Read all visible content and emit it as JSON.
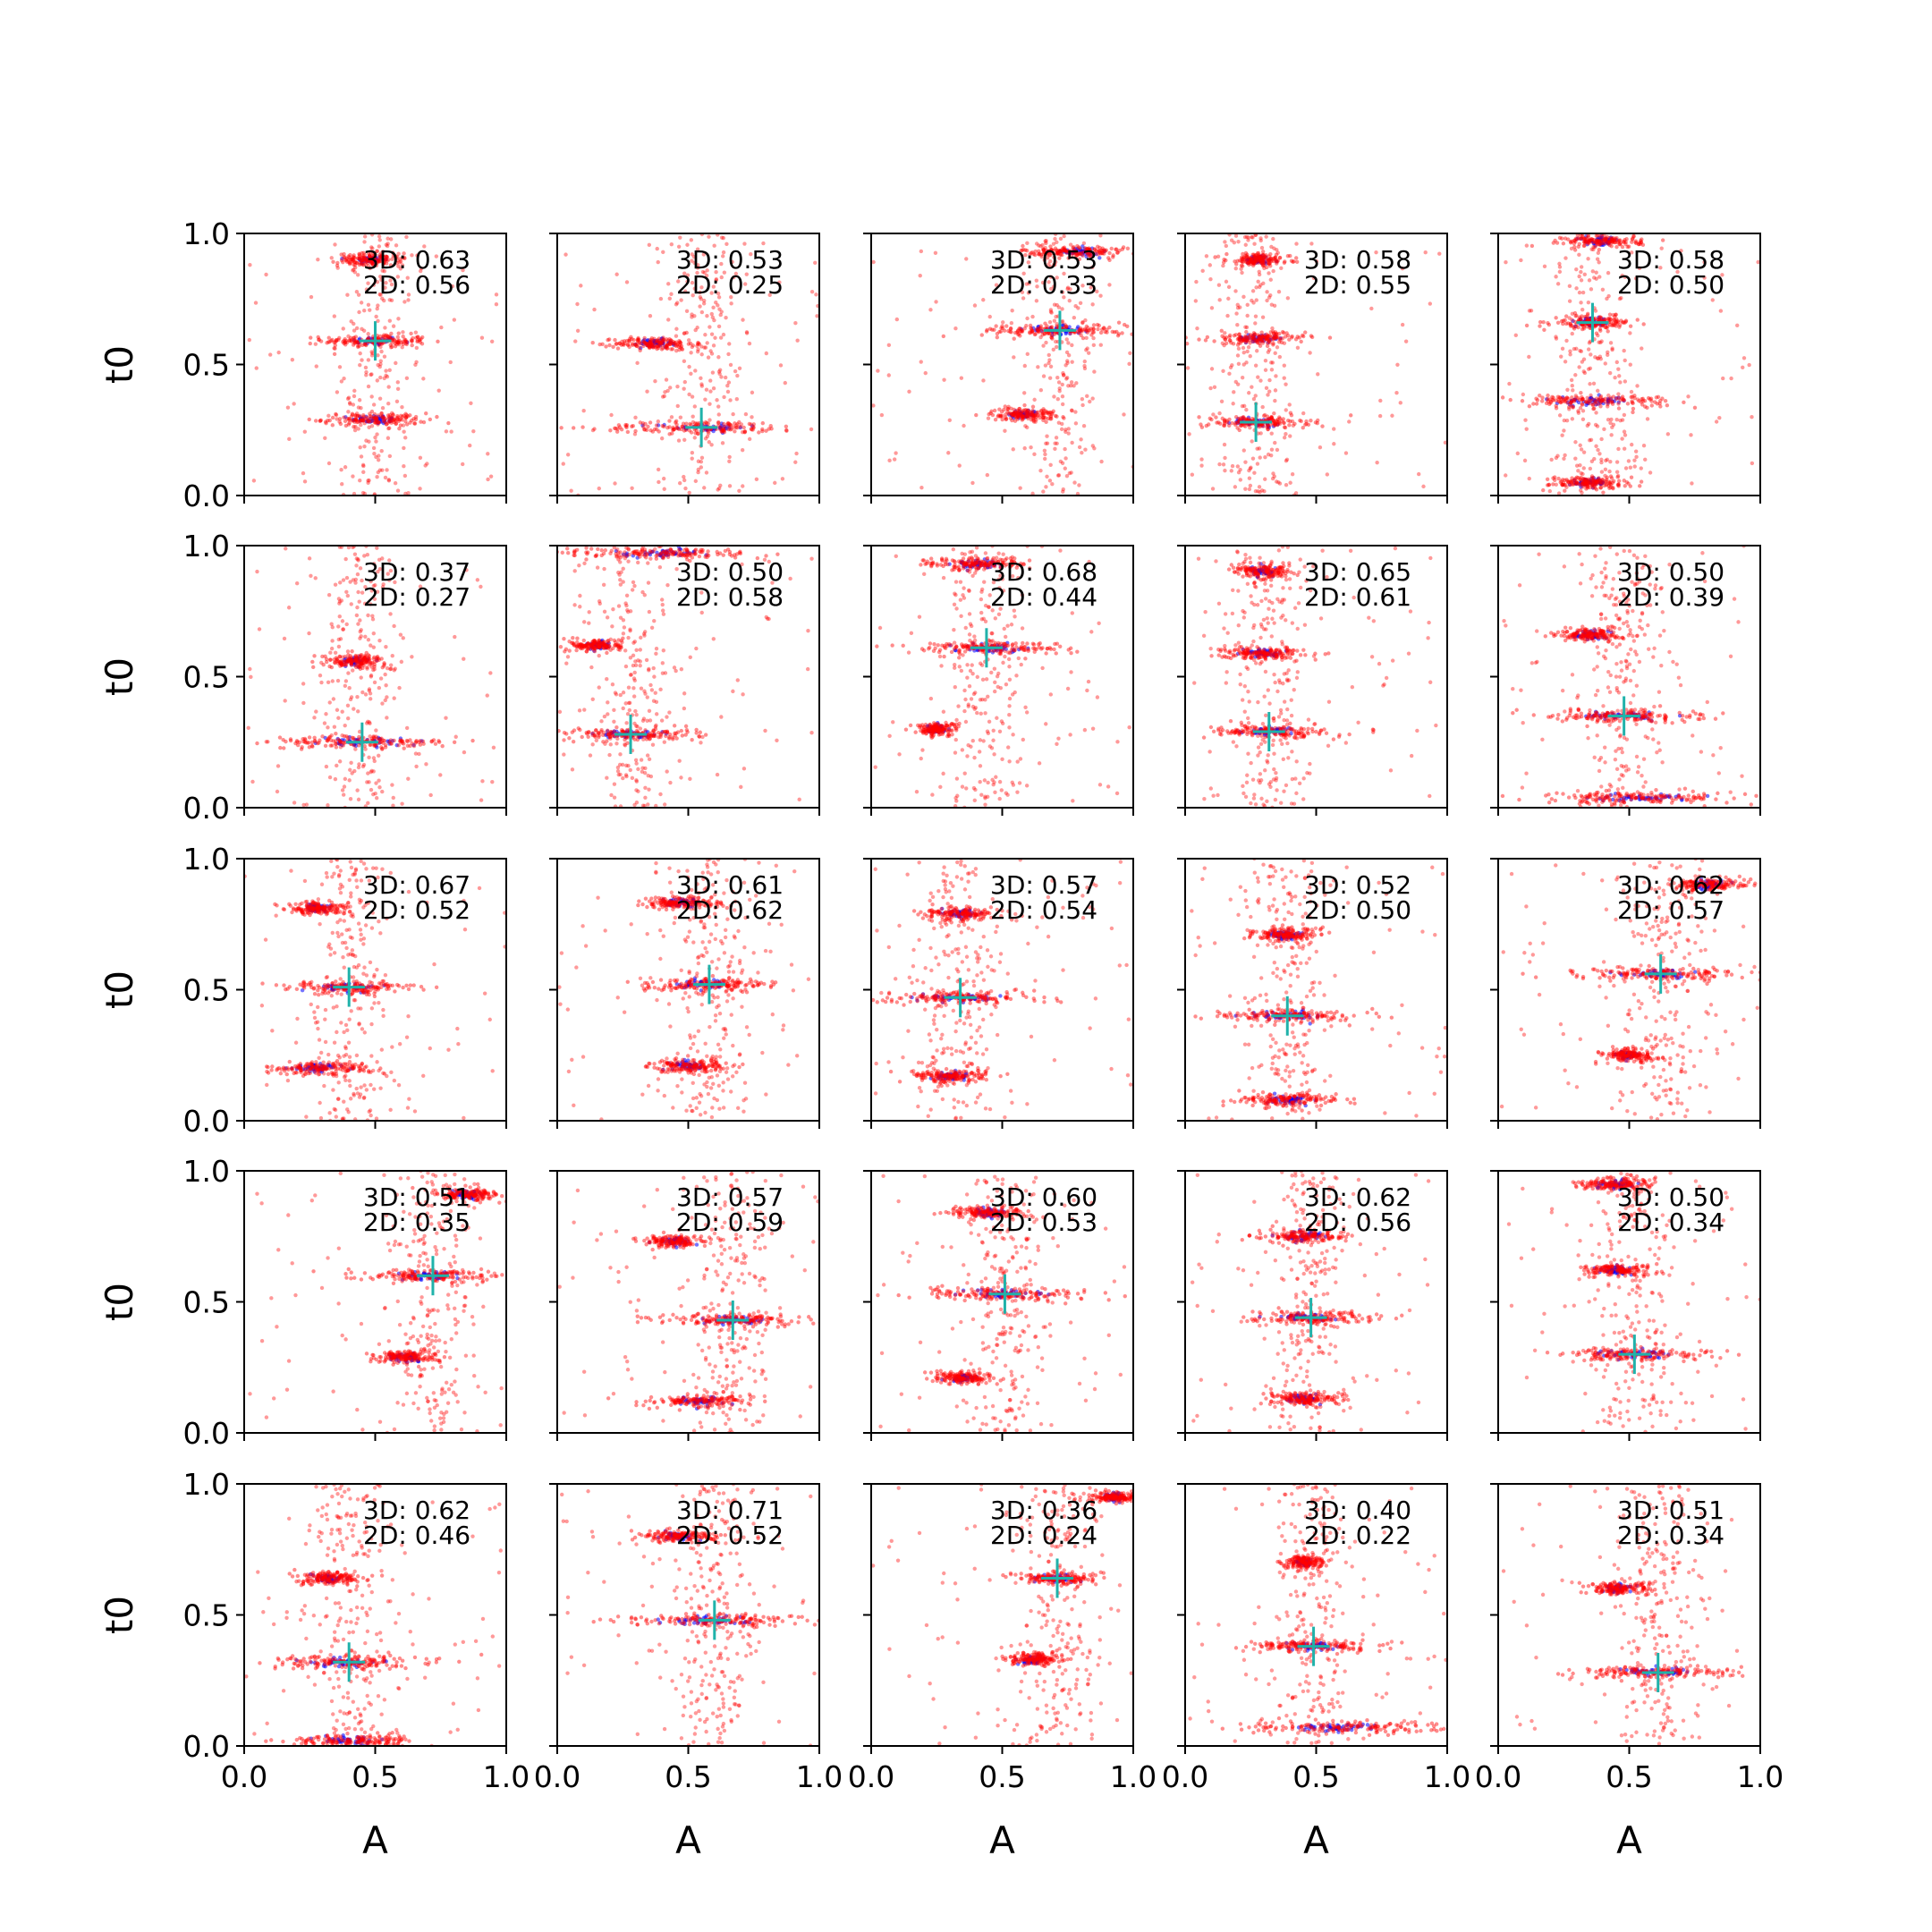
{
  "chart_data": {
    "type": "scatter",
    "grid": false,
    "layout": "5x5 small multiples",
    "xlabel": "A",
    "ylabel": "t0",
    "xlim": [
      0.0,
      1.0
    ],
    "ylim": [
      0.0,
      1.0
    ],
    "xticks": [
      "0.0",
      "0.5",
      "1.0"
    ],
    "yticks": [
      "0.0",
      "0.5",
      "1.0"
    ],
    "colors": {
      "series_3d": "#0000ff",
      "series_2d": "#ff0000",
      "marker": "#20b2aa"
    },
    "annotation_labels": [
      "3D:",
      "2D:"
    ],
    "panels": [
      {
        "score_3d": "0.63",
        "score_2d": "0.56",
        "marker": [
          0.5,
          0.59
        ],
        "clusters": [
          {
            "a": 0.5,
            "t": 0.59,
            "w": 0.2
          },
          {
            "a": 0.5,
            "t": 0.29,
            "w": 0.2
          },
          {
            "a": 0.48,
            "t": 0.9,
            "w": 0.12
          }
        ]
      },
      {
        "score_3d": "0.53",
        "score_2d": "0.25",
        "marker": [
          0.55,
          0.26
        ],
        "clusters": [
          {
            "a": 0.37,
            "t": 0.58,
            "w": 0.15
          },
          {
            "a": 0.55,
            "t": 0.26,
            "w": 0.4
          }
        ]
      },
      {
        "score_3d": "0.53",
        "score_2d": "0.33",
        "marker": [
          0.72,
          0.63
        ],
        "clusters": [
          {
            "a": 0.72,
            "t": 0.63,
            "w": 0.3
          },
          {
            "a": 0.58,
            "t": 0.31,
            "w": 0.12
          },
          {
            "a": 0.78,
            "t": 0.93,
            "w": 0.2
          }
        ]
      },
      {
        "score_3d": "0.58",
        "score_2d": "0.55",
        "marker": [
          0.27,
          0.28
        ],
        "clusters": [
          {
            "a": 0.27,
            "t": 0.28,
            "w": 0.2
          },
          {
            "a": 0.28,
            "t": 0.6,
            "w": 0.18
          },
          {
            "a": 0.28,
            "t": 0.9,
            "w": 0.12
          }
        ]
      },
      {
        "score_3d": "0.58",
        "score_2d": "0.50",
        "marker": [
          0.36,
          0.66
        ],
        "clusters": [
          {
            "a": 0.36,
            "t": 0.66,
            "w": 0.15
          },
          {
            "a": 0.36,
            "t": 0.36,
            "w": 0.3
          },
          {
            "a": 0.35,
            "t": 0.05,
            "w": 0.15
          },
          {
            "a": 0.4,
            "t": 0.97,
            "w": 0.15
          }
        ]
      },
      {
        "score_3d": "0.37",
        "score_2d": "0.27",
        "marker": [
          0.45,
          0.25
        ],
        "clusters": [
          {
            "a": 0.45,
            "t": 0.25,
            "w": 0.35
          },
          {
            "a": 0.42,
            "t": 0.56,
            "w": 0.12
          }
        ]
      },
      {
        "score_3d": "0.50",
        "score_2d": "0.58",
        "marker": [
          0.28,
          0.28
        ],
        "clusters": [
          {
            "a": 0.28,
            "t": 0.28,
            "w": 0.25
          },
          {
            "a": 0.15,
            "t": 0.62,
            "w": 0.1
          },
          {
            "a": 0.4,
            "t": 0.97,
            "w": 0.4
          }
        ]
      },
      {
        "score_3d": "0.68",
        "score_2d": "0.44",
        "marker": [
          0.44,
          0.61
        ],
        "clusters": [
          {
            "a": 0.44,
            "t": 0.61,
            "w": 0.3
          },
          {
            "a": 0.25,
            "t": 0.3,
            "w": 0.08
          },
          {
            "a": 0.4,
            "t": 0.93,
            "w": 0.2
          }
        ]
      },
      {
        "score_3d": "0.65",
        "score_2d": "0.61",
        "marker": [
          0.32,
          0.29
        ],
        "clusters": [
          {
            "a": 0.32,
            "t": 0.29,
            "w": 0.25
          },
          {
            "a": 0.3,
            "t": 0.59,
            "w": 0.15
          },
          {
            "a": 0.3,
            "t": 0.9,
            "w": 0.12
          }
        ]
      },
      {
        "score_3d": "0.50",
        "score_2d": "0.39",
        "marker": [
          0.48,
          0.35
        ],
        "clusters": [
          {
            "a": 0.48,
            "t": 0.35,
            "w": 0.3
          },
          {
            "a": 0.35,
            "t": 0.66,
            "w": 0.12
          },
          {
            "a": 0.55,
            "t": 0.04,
            "w": 0.4
          }
        ]
      },
      {
        "score_3d": "0.67",
        "score_2d": "0.52",
        "marker": [
          0.4,
          0.51
        ],
        "clusters": [
          {
            "a": 0.4,
            "t": 0.51,
            "w": 0.25
          },
          {
            "a": 0.28,
            "t": 0.2,
            "w": 0.2
          },
          {
            "a": 0.28,
            "t": 0.81,
            "w": 0.12
          }
        ]
      },
      {
        "score_3d": "0.61",
        "score_2d": "0.62",
        "marker": [
          0.58,
          0.52
        ],
        "clusters": [
          {
            "a": 0.58,
            "t": 0.52,
            "w": 0.25
          },
          {
            "a": 0.5,
            "t": 0.21,
            "w": 0.15
          },
          {
            "a": 0.48,
            "t": 0.83,
            "w": 0.15
          }
        ]
      },
      {
        "score_3d": "0.57",
        "score_2d": "0.54",
        "marker": [
          0.34,
          0.47
        ],
        "clusters": [
          {
            "a": 0.34,
            "t": 0.47,
            "w": 0.3
          },
          {
            "a": 0.3,
            "t": 0.17,
            "w": 0.15
          },
          {
            "a": 0.35,
            "t": 0.79,
            "w": 0.15
          }
        ]
      },
      {
        "score_3d": "0.52",
        "score_2d": "0.50",
        "marker": [
          0.39,
          0.4
        ],
        "clusters": [
          {
            "a": 0.39,
            "t": 0.4,
            "w": 0.3
          },
          {
            "a": 0.4,
            "t": 0.08,
            "w": 0.2
          },
          {
            "a": 0.38,
            "t": 0.71,
            "w": 0.12
          }
        ]
      },
      {
        "score_3d": "0.62",
        "score_2d": "0.57",
        "marker": [
          0.62,
          0.56
        ],
        "clusters": [
          {
            "a": 0.62,
            "t": 0.56,
            "w": 0.3
          },
          {
            "a": 0.5,
            "t": 0.25,
            "w": 0.1
          },
          {
            "a": 0.8,
            "t": 0.9,
            "w": 0.15
          }
        ]
      },
      {
        "score_3d": "0.51",
        "score_2d": "0.35",
        "marker": [
          0.72,
          0.6
        ],
        "clusters": [
          {
            "a": 0.72,
            "t": 0.6,
            "w": 0.25
          },
          {
            "a": 0.62,
            "t": 0.29,
            "w": 0.12
          },
          {
            "a": 0.85,
            "t": 0.91,
            "w": 0.12
          }
        ]
      },
      {
        "score_3d": "0.57",
        "score_2d": "0.59",
        "marker": [
          0.67,
          0.43
        ],
        "clusters": [
          {
            "a": 0.67,
            "t": 0.43,
            "w": 0.3
          },
          {
            "a": 0.45,
            "t": 0.73,
            "w": 0.12
          },
          {
            "a": 0.55,
            "t": 0.12,
            "w": 0.2
          }
        ]
      },
      {
        "score_3d": "0.60",
        "score_2d": "0.53",
        "marker": [
          0.51,
          0.53
        ],
        "clusters": [
          {
            "a": 0.51,
            "t": 0.53,
            "w": 0.35
          },
          {
            "a": 0.35,
            "t": 0.21,
            "w": 0.12
          },
          {
            "a": 0.45,
            "t": 0.84,
            "w": 0.15
          }
        ]
      },
      {
        "score_3d": "0.62",
        "score_2d": "0.56",
        "marker": [
          0.48,
          0.44
        ],
        "clusters": [
          {
            "a": 0.48,
            "t": 0.44,
            "w": 0.25
          },
          {
            "a": 0.45,
            "t": 0.75,
            "w": 0.18
          },
          {
            "a": 0.45,
            "t": 0.13,
            "w": 0.12
          }
        ]
      },
      {
        "score_3d": "0.50",
        "score_2d": "0.34",
        "marker": [
          0.52,
          0.3
        ],
        "clusters": [
          {
            "a": 0.52,
            "t": 0.3,
            "w": 0.3
          },
          {
            "a": 0.45,
            "t": 0.62,
            "w": 0.15
          },
          {
            "a": 0.45,
            "t": 0.95,
            "w": 0.15
          }
        ]
      },
      {
        "score_3d": "0.62",
        "score_2d": "0.46",
        "marker": [
          0.4,
          0.32
        ],
        "clusters": [
          {
            "a": 0.4,
            "t": 0.32,
            "w": 0.3
          },
          {
            "a": 0.32,
            "t": 0.64,
            "w": 0.12
          },
          {
            "a": 0.4,
            "t": 0.02,
            "w": 0.25
          }
        ]
      },
      {
        "score_3d": "0.71",
        "score_2d": "0.52",
        "marker": [
          0.6,
          0.48
        ],
        "clusters": [
          {
            "a": 0.6,
            "t": 0.48,
            "w": 0.35
          },
          {
            "a": 0.45,
            "t": 0.8,
            "w": 0.15
          }
        ]
      },
      {
        "score_3d": "0.36",
        "score_2d": "0.24",
        "marker": [
          0.71,
          0.64
        ],
        "clusters": [
          {
            "a": 0.71,
            "t": 0.64,
            "w": 0.15
          },
          {
            "a": 0.62,
            "t": 0.33,
            "w": 0.1
          },
          {
            "a": 0.92,
            "t": 0.95,
            "w": 0.1
          }
        ]
      },
      {
        "score_3d": "0.40",
        "score_2d": "0.22",
        "marker": [
          0.49,
          0.38
        ],
        "clusters": [
          {
            "a": 0.49,
            "t": 0.38,
            "w": 0.25
          },
          {
            "a": 0.45,
            "t": 0.7,
            "w": 0.08
          },
          {
            "a": 0.6,
            "t": 0.07,
            "w": 0.35
          }
        ]
      },
      {
        "score_3d": "0.51",
        "score_2d": "0.34",
        "marker": [
          0.61,
          0.28
        ],
        "clusters": [
          {
            "a": 0.61,
            "t": 0.28,
            "w": 0.3
          },
          {
            "a": 0.45,
            "t": 0.6,
            "w": 0.12
          }
        ]
      }
    ]
  }
}
